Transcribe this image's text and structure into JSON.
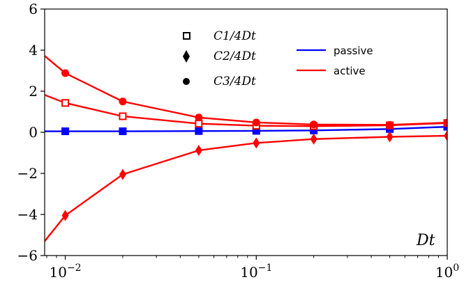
{
  "chart_data": {
    "type": "line",
    "title": "",
    "xlabel": "D_t",
    "xlabel_display": "Dt",
    "ylabel": "",
    "xscale": "log",
    "xlim": [
      0.0078,
      1.0
    ],
    "ylim": [
      -6,
      6
    ],
    "yticks": [
      -6,
      -4,
      -2,
      0,
      2,
      4,
      6
    ],
    "ytick_labels": [
      "−6",
      "−4",
      "−2",
      "0",
      "2",
      "4",
      "6"
    ],
    "xticks": [
      {
        "value": 0.01,
        "base": "10",
        "exp": "−2"
      },
      {
        "value": 0.1,
        "base": "10",
        "exp": "−1"
      },
      {
        "value": 1.0,
        "base": "10",
        "exp": "0"
      }
    ],
    "colors": {
      "passive": "#0000ff",
      "active": "#ff0000"
    },
    "markers": [
      {
        "name": "C_1/4D_t",
        "label": "C1/4Dt",
        "shape": "square-open"
      },
      {
        "name": "C_2/4D_t",
        "label": "C2/4Dt",
        "shape": "diamond"
      },
      {
        "name": "C_3/4D_t",
        "label": "C3/4Dt",
        "shape": "circle"
      }
    ],
    "line_legend": [
      {
        "label": "passive",
        "color": "#0000ff"
      },
      {
        "label": "active",
        "color": "#ff0000"
      }
    ],
    "series": [
      {
        "name": "passive C1",
        "group": "passive",
        "marker": "square-filled",
        "x": [
          0.01,
          0.02,
          0.05,
          0.1,
          0.2,
          0.5,
          1.0
        ],
        "y": [
          0.05,
          0.05,
          0.06,
          0.07,
          0.09,
          0.16,
          0.27
        ],
        "curve_x": [
          0.0078,
          0.01,
          0.02,
          0.05,
          0.1,
          0.2,
          0.5,
          1.0
        ],
        "curve_y": [
          0.05,
          0.05,
          0.05,
          0.06,
          0.07,
          0.09,
          0.16,
          0.27
        ]
      },
      {
        "name": "active C1",
        "group": "active",
        "marker": "square-open",
        "x": [
          0.01,
          0.02,
          0.05,
          0.1,
          0.2,
          0.5,
          1.0
        ],
        "y": [
          1.43,
          0.78,
          0.42,
          0.32,
          0.3,
          0.34,
          0.45
        ],
        "curve_x": [
          0.0078,
          0.01,
          0.02,
          0.05,
          0.1,
          0.2,
          0.5,
          1.0
        ],
        "curve_y": [
          1.82,
          1.43,
          0.78,
          0.42,
          0.32,
          0.3,
          0.34,
          0.45
        ]
      },
      {
        "name": "active C2",
        "group": "active",
        "marker": "diamond",
        "x": [
          0.01,
          0.02,
          0.05,
          0.1,
          0.2,
          0.5,
          1.0
        ],
        "y": [
          -4.05,
          -2.05,
          -0.88,
          -0.52,
          -0.33,
          -0.22,
          -0.17
        ],
        "curve_x": [
          0.0078,
          0.01,
          0.02,
          0.05,
          0.1,
          0.2,
          0.5,
          1.0
        ],
        "curve_y": [
          -5.3,
          -4.05,
          -2.05,
          -0.88,
          -0.52,
          -0.33,
          -0.22,
          -0.17
        ]
      },
      {
        "name": "active C3",
        "group": "active",
        "marker": "circle",
        "x": [
          0.01,
          0.02,
          0.05,
          0.1,
          0.2,
          0.5,
          1.0
        ],
        "y": [
          2.88,
          1.5,
          0.72,
          0.48,
          0.38,
          0.36,
          0.47
        ],
        "curve_x": [
          0.0078,
          0.01,
          0.02,
          0.05,
          0.1,
          0.2,
          0.5,
          1.0
        ],
        "curve_y": [
          3.72,
          2.88,
          1.5,
          0.72,
          0.48,
          0.38,
          0.36,
          0.47
        ]
      }
    ]
  }
}
